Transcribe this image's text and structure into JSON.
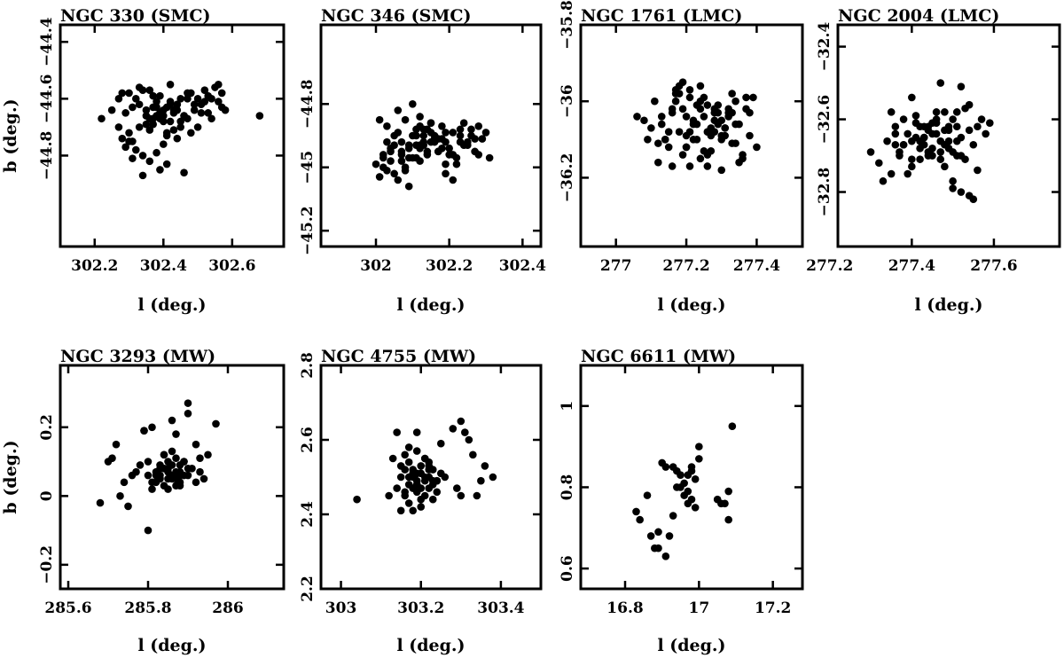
{
  "chart_data": [
    {
      "type": "scatter",
      "title": "NGC 330 (SMC)",
      "xlabel": "l (deg.)",
      "ylabel": "b (deg.)",
      "xlim": [
        302.1,
        302.75
      ],
      "ylim": [
        -45.12,
        -44.34
      ],
      "xticks": [
        302.2,
        302.4,
        302.6
      ],
      "xtick_labels": [
        "302.2",
        "302.4",
        "302.6"
      ],
      "yticks": [
        -44.4,
        -44.6,
        -44.8
      ],
      "ytick_labels": [
        "−44.4",
        "−44.6",
        "−44.8"
      ],
      "x": [
        302.22,
        302.25,
        302.27,
        302.28,
        302.29,
        302.3,
        302.31,
        302.32,
        302.33,
        302.34,
        302.35,
        302.36,
        302.37,
        302.38,
        302.39,
        302.4,
        302.41,
        302.42,
        302.43,
        302.44,
        302.45,
        302.46,
        302.47,
        302.48,
        302.49,
        302.5,
        302.51,
        302.52,
        302.53,
        302.54,
        302.55,
        302.56,
        302.57,
        302.58,
        302.32,
        302.34,
        302.36,
        302.38,
        302.4,
        302.42,
        302.44,
        302.3,
        302.33,
        302.35,
        302.37,
        302.39,
        302.41,
        302.43,
        302.45,
        302.47,
        302.28,
        302.31,
        302.36,
        302.38,
        302.42,
        302.46,
        302.5,
        302.54,
        302.29,
        302.33,
        302.37,
        302.4,
        302.44,
        302.48,
        302.52,
        302.56,
        302.35,
        302.39,
        302.43,
        302.47,
        302.51,
        302.38,
        302.41,
        302.45,
        302.49,
        302.53,
        302.57,
        302.36,
        302.4,
        302.44,
        302.34,
        302.31,
        302.3,
        302.27,
        302.68,
        302.39,
        302.42,
        302.37,
        302.46,
        302.41
      ],
      "y": [
        -44.67,
        -44.64,
        -44.6,
        -44.58,
        -44.65,
        -44.72,
        -44.75,
        -44.6,
        -44.62,
        -44.57,
        -44.66,
        -44.71,
        -44.63,
        -44.61,
        -44.59,
        -44.68,
        -44.73,
        -44.55,
        -44.64,
        -44.62,
        -44.7,
        -44.66,
        -44.6,
        -44.58,
        -44.64,
        -44.7,
        -44.62,
        -44.57,
        -44.65,
        -44.6,
        -44.56,
        -44.61,
        -44.58,
        -44.64,
        -44.78,
        -44.8,
        -44.82,
        -44.79,
        -44.76,
        -44.68,
        -44.74,
        -44.58,
        -44.56,
        -44.64,
        -44.69,
        -44.65,
        -44.63,
        -44.71,
        -44.6,
        -44.67,
        -44.74,
        -44.63,
        -44.57,
        -44.66,
        -44.61,
        -44.66,
        -44.6,
        -44.67,
        -44.77,
        -44.7,
        -44.67,
        -44.64,
        -44.62,
        -44.72,
        -44.61,
        -44.55,
        -44.69,
        -44.67,
        -44.65,
        -44.58,
        -44.65,
        -44.63,
        -44.72,
        -44.68,
        -44.62,
        -44.59,
        -44.63,
        -44.67,
        -44.66,
        -44.64,
        -44.87,
        -44.81,
        -44.75,
        -44.7,
        -44.66,
        -44.85,
        -44.62,
        -44.59,
        -44.86,
        -44.83
      ]
    },
    {
      "type": "scatter",
      "title": "NGC 346 (SMC)",
      "xlabel": "l (deg.)",
      "ylabel": "",
      "xlim": [
        301.85,
        302.45
      ],
      "ylim": [
        -45.25,
        -44.55
      ],
      "xticks": [
        302.0,
        302.2,
        302.4
      ],
      "xtick_labels": [
        "302",
        "302.2",
        "302.4"
      ],
      "yticks": [
        -44.8,
        -45.0,
        -45.2
      ],
      "ytick_labels": [
        "−44.8",
        "−45",
        "−45.2"
      ],
      "x": [
        302.0,
        302.01,
        302.02,
        302.03,
        302.04,
        302.05,
        302.06,
        302.07,
        302.08,
        302.09,
        302.1,
        302.11,
        302.12,
        302.13,
        302.14,
        302.15,
        302.16,
        302.17,
        302.18,
        302.19,
        302.2,
        302.21,
        302.22,
        302.23,
        302.24,
        302.25,
        302.26,
        302.27,
        302.28,
        302.29,
        302.3,
        302.01,
        302.03,
        302.05,
        302.07,
        302.09,
        302.11,
        302.13,
        302.15,
        302.17,
        302.19,
        302.21,
        302.23,
        302.02,
        302.04,
        302.06,
        302.08,
        302.1,
        302.12,
        302.14,
        302.16,
        302.18,
        302.2,
        302.22,
        302.24,
        302.26,
        302.28,
        302.06,
        302.08,
        302.1,
        302.12,
        302.14,
        302.16,
        302.18,
        302.02,
        302.04,
        302.09,
        302.11,
        302.13,
        302.15,
        302.19,
        302.21,
        302.07,
        302.13,
        302.25,
        302.03,
        302.11,
        302.17,
        302.23,
        302.09,
        302.15,
        302.27,
        302.05,
        302.19,
        302.07,
        302.12,
        302.31,
        302.12
      ],
      "y": [
        -44.99,
        -45.03,
        -44.96,
        -44.92,
        -44.98,
        -45.02,
        -44.89,
        -44.95,
        -45.0,
        -44.93,
        -44.97,
        -44.9,
        -44.94,
        -44.88,
        -44.96,
        -44.92,
        -44.9,
        -44.95,
        -44.91,
        -44.99,
        -44.94,
        -44.89,
        -44.97,
        -44.9,
        -44.86,
        -44.93,
        -44.88,
        -44.95,
        -44.87,
        -44.91,
        -44.89,
        -44.85,
        -44.87,
        -44.9,
        -44.92,
        -44.94,
        -44.88,
        -44.93,
        -44.86,
        -44.91,
        -44.89,
        -44.96,
        -44.88,
        -45.0,
        -44.95,
        -45.04,
        -45.01,
        -44.9,
        -44.98,
        -44.95,
        -44.92,
        -44.87,
        -44.96,
        -44.99,
        -44.93,
        -44.9,
        -44.96,
        -44.82,
        -44.85,
        -44.8,
        -44.84,
        -44.88,
        -44.91,
        -44.94,
        -44.97,
        -44.94,
        -45.06,
        -44.97,
        -44.92,
        -44.86,
        -45.02,
        -45.04,
        -44.98,
        -44.9,
        -44.92,
        -45.01,
        -44.93,
        -44.95,
        -44.92,
        -44.97,
        -44.89,
        -44.91,
        -44.93,
        -44.92,
        -44.96,
        -44.93,
        -44.97,
        -44.87
      ]
    },
    {
      "type": "scatter",
      "title": "NGC 1761 (LMC)",
      "xlabel": "l (deg.)",
      "ylabel": "",
      "xlim": [
        276.9,
        277.53
      ],
      "ylim": [
        -36.38,
        -35.8
      ],
      "xticks": [
        277.0,
        277.2,
        277.4
      ],
      "xtick_labels": [
        "277",
        "277.2",
        "277.4"
      ],
      "yticks": [
        -35.8,
        -36.0,
        -36.2
      ],
      "ytick_labels": [
        "−35.8",
        "−36",
        "−36.2"
      ],
      "x": [
        277.06,
        277.09,
        277.11,
        277.13,
        277.15,
        277.16,
        277.17,
        277.18,
        277.19,
        277.2,
        277.21,
        277.22,
        277.23,
        277.24,
        277.25,
        277.26,
        277.27,
        277.28,
        277.29,
        277.3,
        277.31,
        277.32,
        277.33,
        277.34,
        277.35,
        277.36,
        277.37,
        277.38,
        277.39,
        277.4,
        277.12,
        277.14,
        277.16,
        277.18,
        277.2,
        277.22,
        277.24,
        277.26,
        277.28,
        277.3,
        277.32,
        277.34,
        277.15,
        277.17,
        277.19,
        277.21,
        277.23,
        277.25,
        277.27,
        277.29,
        277.31,
        277.33,
        277.1,
        277.13,
        277.17,
        277.21,
        277.25,
        277.29,
        277.33,
        277.37,
        277.16,
        277.2,
        277.24,
        277.28,
        277.32,
        277.36,
        277.19,
        277.23,
        277.27,
        277.31,
        277.35,
        277.22,
        277.26,
        277.3,
        277.14,
        277.18,
        277.24,
        277.28,
        277.34,
        277.08,
        277.12,
        277.38,
        277.26,
        277.21,
        277.3,
        277.2
      ],
      "y": [
        -36.04,
        -36.1,
        -36.0,
        -36.06,
        -36.12,
        -36.02,
        -35.98,
        -36.08,
        -36.14,
        -36.04,
        -35.97,
        -36.1,
        -36.06,
        -36.02,
        -35.99,
        -36.08,
        -36.13,
        -36.05,
        -36.01,
        -36.1,
        -36.07,
        -36.03,
        -36.11,
        -36.0,
        -36.06,
        -36.15,
        -36.02,
        -36.09,
        -35.99,
        -36.12,
        -36.16,
        -36.1,
        -36.03,
        -35.98,
        -36.12,
        -36.06,
        -36.0,
        -36.14,
        -36.08,
        -36.05,
        -36.02,
        -36.11,
        -36.08,
        -36.0,
        -36.02,
        -35.99,
        -36.1,
        -36.04,
        -36.07,
        -36.03,
        -36.09,
        -35.98,
        -36.07,
        -36.04,
        -35.97,
        -36.08,
        -36.13,
        -36.06,
        -36.03,
        -35.99,
        -36.17,
        -36.12,
        -35.96,
        -36.02,
        -36.04,
        -36.14,
        -35.95,
        -36.01,
        -36.09,
        -36.07,
        -36.16,
        -36.05,
        -36.01,
        -36.18,
        -36.1,
        -35.96,
        -36.15,
        -36.03,
        -36.06,
        -36.05,
        -36.11,
        -36.03,
        -36.17,
        -36.17,
        -36.09,
        -36.09
      ]
    },
    {
      "type": "scatter",
      "title": "NGC 2004 (LMC)",
      "xlabel": "l (deg.)",
      "ylabel": "",
      "xlim": [
        277.22,
        277.76
      ],
      "ylim": [
        -32.95,
        -32.34
      ],
      "xticks": [
        277.2,
        277.4,
        277.6
      ],
      "xtick_labels": [
        "277.2",
        "277.4",
        "277.6"
      ],
      "yticks": [
        -32.4,
        -32.6,
        -32.8
      ],
      "ytick_labels": [
        "−32.4",
        "−32.6",
        "−32.8"
      ],
      "x": [
        277.3,
        277.32,
        277.34,
        277.35,
        277.36,
        277.37,
        277.38,
        277.39,
        277.4,
        277.41,
        277.42,
        277.43,
        277.44,
        277.45,
        277.46,
        277.47,
        277.48,
        277.49,
        277.5,
        277.51,
        277.52,
        277.53,
        277.54,
        277.55,
        277.56,
        277.57,
        277.58,
        277.59,
        277.33,
        277.36,
        277.38,
        277.4,
        277.42,
        277.44,
        277.46,
        277.48,
        277.5,
        277.52,
        277.54,
        277.37,
        277.39,
        277.41,
        277.43,
        277.45,
        277.47,
        277.49,
        277.51,
        277.35,
        277.4,
        277.44,
        277.48,
        277.52,
        277.56,
        277.42,
        277.46,
        277.5,
        277.54,
        277.38,
        277.43,
        277.47,
        277.51,
        277.41,
        277.45,
        277.49,
        277.53,
        277.4,
        277.44,
        277.48,
        277.46,
        277.5,
        277.52,
        277.42,
        277.47,
        277.55,
        277.36,
        277.45,
        277.49,
        277.43,
        277.51
      ],
      "y": [
        -32.69,
        -32.72,
        -32.66,
        -32.75,
        -32.62,
        -32.7,
        -32.67,
        -32.64,
        -32.71,
        -32.61,
        -32.68,
        -32.65,
        -32.63,
        -32.7,
        -32.6,
        -32.66,
        -32.73,
        -32.62,
        -32.69,
        -32.58,
        -32.65,
        -32.71,
        -32.63,
        -32.67,
        -32.74,
        -32.6,
        -32.64,
        -32.61,
        -32.77,
        -32.64,
        -32.6,
        -32.73,
        -32.66,
        -32.7,
        -32.58,
        -32.63,
        -32.77,
        -32.7,
        -32.56,
        -32.69,
        -32.75,
        -32.59,
        -32.67,
        -32.64,
        -32.71,
        -32.68,
        -32.62,
        -32.58,
        -32.66,
        -32.62,
        -32.67,
        -32.8,
        -32.62,
        -32.71,
        -32.64,
        -32.6,
        -32.81,
        -32.67,
        -32.62,
        -32.69,
        -32.66,
        -32.65,
        -32.68,
        -32.63,
        -32.57,
        -32.54,
        -32.69,
        -32.58,
        -32.61,
        -32.79,
        -32.51,
        -32.62,
        -32.5,
        -32.82,
        -32.67,
        -32.61,
        -32.66,
        -32.65,
        -32.7
      ]
    },
    {
      "type": "scatter",
      "title": "NGC 3293 (MW)",
      "xlabel": "l (deg.)",
      "ylabel": "b (deg.)",
      "xlim": [
        285.58,
        286.14
      ],
      "ylim": [
        -0.27,
        0.38
      ],
      "xticks": [
        285.6,
        285.8,
        286.0
      ],
      "xtick_labels": [
        "285.6",
        "285.8",
        "286"
      ],
      "yticks": [
        -0.2,
        0.0,
        0.2
      ],
      "ytick_labels": [
        "−0.2",
        "0",
        "0.2"
      ],
      "x": [
        285.68,
        285.7,
        285.72,
        285.74,
        285.75,
        285.77,
        285.79,
        285.8,
        285.81,
        285.82,
        285.83,
        285.84,
        285.85,
        285.86,
        285.87,
        285.88,
        285.89,
        285.9,
        285.91,
        285.92,
        285.93,
        285.95,
        285.97,
        285.82,
        285.84,
        285.86,
        285.88,
        285.9,
        285.83,
        285.85,
        285.87,
        285.89,
        285.81,
        285.83,
        285.85,
        285.87,
        285.89,
        285.8,
        285.82,
        285.84,
        285.86,
        285.88,
        285.85,
        285.87,
        285.83,
        285.86,
        285.84,
        285.88,
        285.71,
        285.73,
        285.76,
        285.78,
        285.79,
        285.81,
        285.86,
        285.9,
        285.92,
        285.93,
        285.87,
        285.85,
        285.8,
        285.94,
        285.84,
        285.88,
        285.9
      ],
      "y": [
        -0.02,
        0.1,
        0.15,
        0.04,
        -0.03,
        0.07,
        0.19,
        0.1,
        0.04,
        0.06,
        0.08,
        0.12,
        0.05,
        0.09,
        0.07,
        0.03,
        0.1,
        0.06,
        0.08,
        0.04,
        0.11,
        0.12,
        0.21,
        0.07,
        0.03,
        0.06,
        0.09,
        0.08,
        0.05,
        0.08,
        0.11,
        0.06,
        0.02,
        0.09,
        0.07,
        0.05,
        0.1,
        0.06,
        0.04,
        0.08,
        0.13,
        0.07,
        0.1,
        0.03,
        0.06,
        0.05,
        0.08,
        0.04,
        0.11,
        0.0,
        0.06,
        0.09,
        0.19,
        0.2,
        0.22,
        0.27,
        0.15,
        0.07,
        0.18,
        0.02,
        -0.1,
        0.05,
        0.12,
        0.06,
        0.24
      ]
    },
    {
      "type": "scatter",
      "title": "NGC 4755 (MW)",
      "xlabel": "l (deg.)",
      "ylabel": "",
      "xlim": [
        302.95,
        303.5
      ],
      "ylim": [
        2.2,
        2.8
      ],
      "xticks": [
        303.0,
        303.2,
        303.4
      ],
      "xtick_labels": [
        "303",
        "303.2",
        "303.4"
      ],
      "yticks": [
        2.2,
        2.4,
        2.6,
        2.8
      ],
      "ytick_labels": [
        "2.2",
        "2.4",
        "2.6",
        "2.8"
      ],
      "x": [
        303.04,
        303.12,
        303.14,
        303.15,
        303.16,
        303.17,
        303.18,
        303.19,
        303.2,
        303.21,
        303.22,
        303.23,
        303.24,
        303.25,
        303.16,
        303.17,
        303.18,
        303.19,
        303.2,
        303.21,
        303.22,
        303.23,
        303.15,
        303.17,
        303.19,
        303.21,
        303.23,
        303.18,
        303.2,
        303.22,
        303.16,
        303.18,
        303.2,
        303.22,
        303.24,
        303.19,
        303.21,
        303.17,
        303.2,
        303.23,
        303.15,
        303.19,
        303.22,
        303.14,
        303.26,
        303.13,
        303.16,
        303.18,
        303.25,
        303.28,
        303.29,
        303.3,
        303.31,
        303.32,
        303.33,
        303.35,
        303.36,
        303.38,
        303.3,
        303.34,
        303.21,
        303.19,
        303.24,
        303.17
      ],
      "y": [
        2.44,
        2.45,
        2.47,
        2.5,
        2.52,
        2.48,
        2.51,
        2.49,
        2.53,
        2.5,
        2.47,
        2.52,
        2.49,
        2.51,
        2.46,
        2.54,
        2.5,
        2.48,
        2.51,
        2.45,
        2.53,
        2.49,
        2.41,
        2.43,
        2.46,
        2.55,
        2.48,
        2.52,
        2.44,
        2.5,
        2.56,
        2.47,
        2.42,
        2.54,
        2.46,
        2.51,
        2.49,
        2.5,
        2.47,
        2.44,
        2.53,
        2.57,
        2.52,
        2.62,
        2.5,
        2.55,
        2.45,
        2.41,
        2.59,
        2.63,
        2.47,
        2.65,
        2.62,
        2.6,
        2.56,
        2.49,
        2.53,
        2.5,
        2.45,
        2.45,
        2.55,
        2.62,
        2.49,
        2.58
      ]
    },
    {
      "type": "scatter",
      "title": "NGC 6611 (MW)",
      "xlabel": "l (deg.)",
      "ylabel": "",
      "xlim": [
        16.68,
        17.28
      ],
      "ylim": [
        0.55,
        1.1
      ],
      "xticks": [
        16.8,
        17.0,
        17.2
      ],
      "xtick_labels": [
        "16.8",
        "17",
        "17.2"
      ],
      "yticks": [
        0.6,
        0.8,
        1.0
      ],
      "ytick_labels": [
        "0.6",
        "0.8",
        "1"
      ],
      "x": [
        16.83,
        16.84,
        16.86,
        16.87,
        16.88,
        16.89,
        16.9,
        16.91,
        16.92,
        16.93,
        16.94,
        16.95,
        16.96,
        16.97,
        16.98,
        16.99,
        17.0,
        16.94,
        16.96,
        16.98,
        17.0,
        16.95,
        16.97,
        16.99,
        16.93,
        16.97,
        17.05,
        17.06,
        17.07,
        17.08,
        17.09,
        17.08,
        16.89,
        16.91,
        16.98
      ],
      "y": [
        0.74,
        0.72,
        0.78,
        0.68,
        0.65,
        0.69,
        0.86,
        0.63,
        0.68,
        0.73,
        0.8,
        0.83,
        0.78,
        0.76,
        0.84,
        0.82,
        0.9,
        0.84,
        0.81,
        0.85,
        0.87,
        0.8,
        0.79,
        0.75,
        0.85,
        0.83,
        0.77,
        0.76,
        0.76,
        0.72,
        0.95,
        0.79,
        0.65,
        0.85,
        0.77
      ]
    }
  ]
}
